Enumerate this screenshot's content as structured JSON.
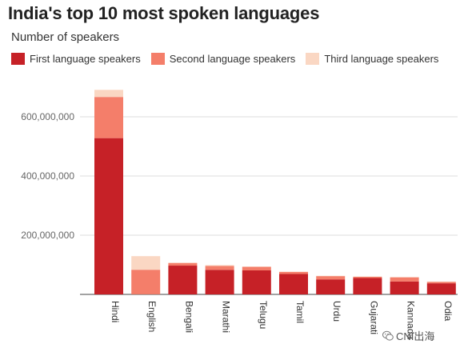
{
  "chart_data": {
    "type": "bar",
    "stacked": true,
    "title": "India's top 10 most spoken languages",
    "subtitle": "Number of speakers",
    "categories": [
      "Hindi",
      "English",
      "Bengali",
      "Marathi",
      "Telugu",
      "Tamil",
      "Urdu",
      "Gujarati",
      "Kannada",
      "Odia"
    ],
    "series": [
      {
        "name": "First language speakers",
        "color": "#c62127",
        "values": [
          528000000,
          260000,
          97200000,
          83000000,
          81100000,
          69000000,
          50800000,
          55500000,
          43700000,
          37500000
        ]
      },
      {
        "name": "Second language speakers",
        "color": "#f47e6a",
        "values": [
          139000000,
          83000000,
          9000000,
          13000000,
          12000000,
          7000000,
          11000000,
          4000000,
          14000000,
          5000000
        ]
      },
      {
        "name": "Third language speakers",
        "color": "#fad7c3",
        "values": [
          24000000,
          46000000,
          1000000,
          3000000,
          1000000,
          1000000,
          1000000,
          1000000,
          1000000,
          1000000
        ]
      }
    ],
    "ylim": [
      0,
      700000000
    ],
    "yticks": [
      200000000,
      400000000,
      600000000
    ],
    "ytick_labels": [
      "200,000,000",
      "400,000,000",
      "600,000,000"
    ],
    "grid": true,
    "legend_position": "top-left",
    "xlabel": "",
    "ylabel": ""
  },
  "watermark": {
    "text": "CNI出海",
    "icon": "wechat-icon"
  }
}
